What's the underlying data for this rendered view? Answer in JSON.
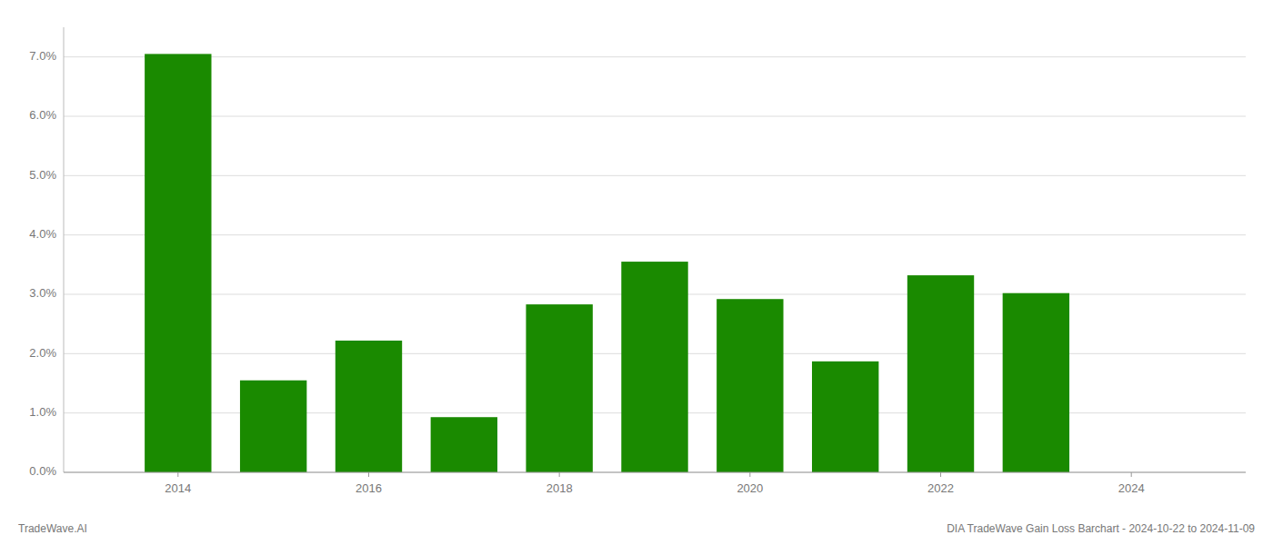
{
  "chart_data": {
    "type": "bar",
    "title": "DIA TradeWave Gain Loss Barchart - 2024-10-22 to 2024-11-09",
    "annotations": [
      "TradeWave.AI"
    ],
    "x": [
      2014,
      2015,
      2016,
      2017,
      2018,
      2019,
      2020,
      2021,
      2022,
      2023
    ],
    "values": [
      0.0705,
      0.0155,
      0.0222,
      0.0093,
      0.0283,
      0.0355,
      0.0292,
      0.0187,
      0.0332,
      0.0302
    ],
    "color": "#1a8a00",
    "xlim": [
      2012.8,
      2025.2
    ],
    "xticks": [
      2014,
      2016,
      2018,
      2020,
      2022,
      2024
    ],
    "ylim": [
      0.0,
      0.075
    ],
    "yticks": [
      {
        "value": 0.0,
        "label": "0.0%"
      },
      {
        "value": 0.01,
        "label": "1.0%"
      },
      {
        "value": 0.02,
        "label": "2.0%"
      },
      {
        "value": 0.03,
        "label": "3.0%"
      },
      {
        "value": 0.04,
        "label": "4.0%"
      },
      {
        "value": 0.05,
        "label": "5.0%"
      },
      {
        "value": 0.06,
        "label": "6.0%"
      },
      {
        "value": 0.07,
        "label": "7.0%"
      }
    ],
    "grid": true
  }
}
